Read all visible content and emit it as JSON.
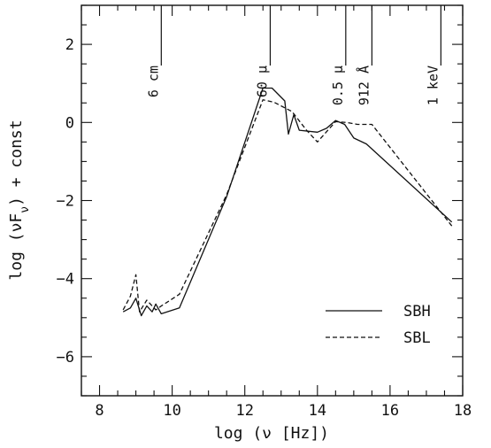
{
  "chart_data": {
    "type": "line",
    "title": "",
    "xlabel": "log (ν [Hz])",
    "ylabel": "log (νF_ν) + const",
    "xlim": [
      7.5,
      18
    ],
    "ylim": [
      -7,
      3
    ],
    "x_ticks": [
      8,
      10,
      12,
      14,
      16,
      18
    ],
    "y_ticks": [
      -6,
      -4,
      -2,
      0,
      2
    ],
    "grid": false,
    "legend_position": "lower-right",
    "band_markers": [
      {
        "label": "6 cm",
        "x": 9.7
      },
      {
        "label": "60 μ",
        "x": 12.7
      },
      {
        "label": "0.5 μ",
        "x": 14.78
      },
      {
        "label": "912 Å",
        "x": 15.5
      },
      {
        "label": "1 keV",
        "x": 17.4
      }
    ],
    "series": [
      {
        "name": "SBH",
        "style": "solid",
        "points": [
          [
            8.65,
            -4.85
          ],
          [
            8.85,
            -4.75
          ],
          [
            9.0,
            -4.5
          ],
          [
            9.15,
            -4.95
          ],
          [
            9.3,
            -4.7
          ],
          [
            9.45,
            -4.85
          ],
          [
            9.55,
            -4.65
          ],
          [
            9.7,
            -4.9
          ],
          [
            10.2,
            -4.75
          ],
          [
            11.5,
            -1.9
          ],
          [
            12.5,
            0.88
          ],
          [
            12.75,
            0.88
          ],
          [
            13.1,
            0.55
          ],
          [
            13.2,
            -0.3
          ],
          [
            13.35,
            0.2
          ],
          [
            13.5,
            -0.2
          ],
          [
            14.0,
            -0.25
          ],
          [
            14.25,
            -0.15
          ],
          [
            14.5,
            0.05
          ],
          [
            14.75,
            -0.05
          ],
          [
            15.0,
            -0.4
          ],
          [
            15.35,
            -0.55
          ],
          [
            17.7,
            -2.55
          ]
        ]
      },
      {
        "name": "SBL",
        "style": "dashed",
        "points": [
          [
            8.65,
            -4.8
          ],
          [
            8.85,
            -4.45
          ],
          [
            9.0,
            -3.9
          ],
          [
            9.1,
            -4.85
          ],
          [
            9.3,
            -4.55
          ],
          [
            9.55,
            -4.8
          ],
          [
            9.7,
            -4.7
          ],
          [
            10.2,
            -4.4
          ],
          [
            11.5,
            -1.85
          ],
          [
            12.5,
            0.58
          ],
          [
            12.8,
            0.52
          ],
          [
            13.3,
            0.28
          ],
          [
            13.7,
            -0.2
          ],
          [
            14.0,
            -0.5
          ],
          [
            14.5,
            0.02
          ],
          [
            14.8,
            0.0
          ],
          [
            15.1,
            -0.05
          ],
          [
            15.5,
            -0.05
          ],
          [
            17.7,
            -2.65
          ]
        ]
      }
    ]
  }
}
